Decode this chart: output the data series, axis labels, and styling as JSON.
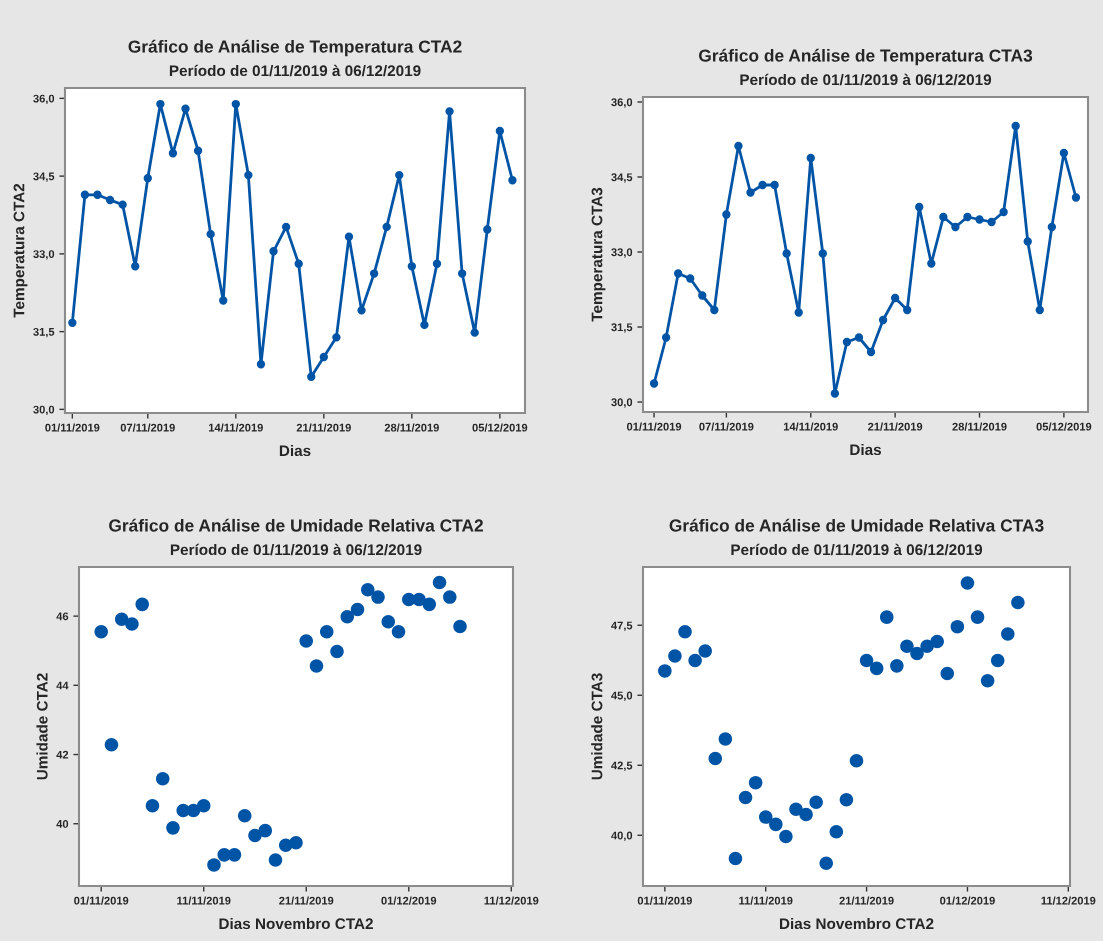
{
  "chart_data": [
    {
      "type": "line",
      "title": "Gráfico de Análise de Temperatura CTA2",
      "subtitle": "Período de 01/11/2019 à 06/12/2019",
      "xlabel": "Dias",
      "ylabel": "Temperatura CTA2",
      "marker": "circle",
      "grid": false,
      "legend": false,
      "x": [
        "2019-11-01",
        "2019-11-02",
        "2019-11-03",
        "2019-11-04",
        "2019-11-05",
        "2019-11-06",
        "2019-11-07",
        "2019-11-08",
        "2019-11-09",
        "2019-11-10",
        "2019-11-11",
        "2019-11-12",
        "2019-11-13",
        "2019-11-14",
        "2019-11-15",
        "2019-11-16",
        "2019-11-17",
        "2019-11-18",
        "2019-11-19",
        "2019-11-20",
        "2019-11-21",
        "2019-11-22",
        "2019-11-23",
        "2019-11-24",
        "2019-11-25",
        "2019-11-26",
        "2019-11-27",
        "2019-11-28",
        "2019-11-29",
        "2019-11-30",
        "2019-12-01",
        "2019-12-02",
        "2019-12-03",
        "2019-12-04",
        "2019-12-05",
        "2019-12-06"
      ],
      "series": [
        {
          "color": "#0054a6",
          "values": [
            31.67,
            34.14,
            34.14,
            34.04,
            33.95,
            32.76,
            34.46,
            35.89,
            34.94,
            35.8,
            34.99,
            33.38,
            32.1,
            35.89,
            34.52,
            30.87,
            33.05,
            33.52,
            32.81,
            30.63,
            31.01,
            31.39,
            33.33,
            31.91,
            32.62,
            33.52,
            34.52,
            32.76,
            31.63,
            32.81,
            35.75,
            32.62,
            31.48,
            33.47,
            35.37,
            34.42
          ]
        }
      ],
      "xlim": [
        "2019-10-31T10:00",
        "2019-12-07T00:00"
      ],
      "ylim": [
        29.93,
        36.2
      ],
      "xticks": [
        {
          "value": "2019-11-01",
          "label": "01/11/2019"
        },
        {
          "value": "2019-11-07",
          "label": "07/11/2019"
        },
        {
          "value": "2019-11-14",
          "label": "14/11/2019"
        },
        {
          "value": "2019-11-21",
          "label": "21/11/2019"
        },
        {
          "value": "2019-11-28",
          "label": "28/11/2019"
        },
        {
          "value": "2019-12-05",
          "label": "05/12/2019"
        }
      ],
      "yticks": [
        {
          "value": 30,
          "label": "30,0"
        },
        {
          "value": 31.5,
          "label": "31,5"
        },
        {
          "value": 33,
          "label": "33,0"
        },
        {
          "value": 34.5,
          "label": "34,5"
        },
        {
          "value": 36,
          "label": "36,0"
        }
      ]
    },
    {
      "type": "line",
      "title": "Gráfico de Análise de Temperatura CTA3",
      "subtitle": "Período de 01/11/2019 à 06/12/2019",
      "xlabel": "Dias",
      "ylabel": "Temperatura CTA3",
      "marker": "circle",
      "grid": false,
      "legend": false,
      "x": [
        "2019-11-01",
        "2019-11-02",
        "2019-11-03",
        "2019-11-04",
        "2019-11-05",
        "2019-11-06",
        "2019-11-07",
        "2019-11-08",
        "2019-11-09",
        "2019-11-10",
        "2019-11-11",
        "2019-11-12",
        "2019-11-13",
        "2019-11-14",
        "2019-11-15",
        "2019-11-16",
        "2019-11-17",
        "2019-11-18",
        "2019-11-19",
        "2019-11-20",
        "2019-11-21",
        "2019-11-22",
        "2019-11-23",
        "2019-11-24",
        "2019-11-25",
        "2019-11-26",
        "2019-11-27",
        "2019-11-28",
        "2019-11-29",
        "2019-11-30",
        "2019-12-01",
        "2019-12-02",
        "2019-12-03",
        "2019-12-04",
        "2019-12-05",
        "2019-12-06"
      ],
      "series": [
        {
          "color": "#0054a6",
          "values": [
            30.37,
            31.29,
            32.57,
            32.47,
            32.13,
            31.84,
            33.75,
            35.12,
            34.19,
            34.34,
            34.34,
            32.97,
            31.79,
            34.88,
            32.97,
            30.17,
            31.2,
            31.29,
            31.0,
            31.64,
            32.08,
            31.84,
            33.9,
            32.77,
            33.7,
            33.5,
            33.7,
            33.65,
            33.6,
            33.8,
            35.52,
            33.21,
            31.84,
            33.5,
            34.98,
            34.09
          ]
        }
      ],
      "xlim": [
        "2019-10-31T02:00",
        "2019-12-07T00:00"
      ],
      "ylim": [
        29.8,
        36.1
      ],
      "xticks": [
        {
          "value": "2019-11-01",
          "label": "01/11/2019"
        },
        {
          "value": "2019-11-07",
          "label": "07/11/2019"
        },
        {
          "value": "2019-11-14",
          "label": "14/11/2019"
        },
        {
          "value": "2019-11-21",
          "label": "21/11/2019"
        },
        {
          "value": "2019-11-28",
          "label": "28/11/2019"
        },
        {
          "value": "2019-12-05",
          "label": "05/12/2019"
        }
      ],
      "yticks": [
        {
          "value": 30,
          "label": "30,0"
        },
        {
          "value": 31.5,
          "label": "31,5"
        },
        {
          "value": 33,
          "label": "33,0"
        },
        {
          "value": 34.5,
          "label": "34,5"
        },
        {
          "value": 36,
          "label": "36,0"
        }
      ]
    },
    {
      "type": "scatter",
      "title": "Gráfico de Análise de Umidade Relativa CTA2",
      "subtitle": "Período de 01/11/2019 à 06/12/2019",
      "xlabel": "Dias Novembro CTA2",
      "ylabel": "Umidade CTA2",
      "marker": "circle",
      "grid": false,
      "legend": false,
      "x": [
        "2019-11-01",
        "2019-11-02",
        "2019-11-03",
        "2019-11-04",
        "2019-11-05",
        "2019-11-06",
        "2019-11-07",
        "2019-11-08",
        "2019-11-09",
        "2019-11-10",
        "2019-11-11",
        "2019-11-12",
        "2019-11-13",
        "2019-11-14",
        "2019-11-15",
        "2019-11-16",
        "2019-11-17",
        "2019-11-18",
        "2019-11-19",
        "2019-11-20",
        "2019-11-21",
        "2019-11-22",
        "2019-11-23",
        "2019-11-24",
        "2019-11-25",
        "2019-11-26",
        "2019-11-27",
        "2019-11-28",
        "2019-11-29",
        "2019-11-30",
        "2019-12-01",
        "2019-12-02",
        "2019-12-03",
        "2019-12-04",
        "2019-12-05",
        "2019-12-06"
      ],
      "series": [
        {
          "color": "#0054a6",
          "values": [
            45.55,
            42.28,
            45.91,
            45.77,
            46.34,
            40.52,
            41.3,
            39.88,
            40.38,
            40.38,
            40.52,
            38.81,
            39.1,
            39.1,
            40.23,
            39.66,
            39.8,
            38.95,
            39.38,
            39.45,
            45.28,
            44.56,
            45.55,
            44.98,
            45.98,
            46.19,
            46.76,
            46.55,
            45.84,
            45.55,
            46.48,
            46.48,
            46.34,
            46.97,
            46.55,
            45.7
          ]
        }
      ],
      "xlim": [
        "2019-10-29T20:00",
        "2019-12-11T04:00"
      ],
      "ylim": [
        38.2,
        47.42
      ],
      "xticks": [
        {
          "value": "2019-11-01",
          "label": "01/11/2019"
        },
        {
          "value": "2019-11-11",
          "label": "11/11/2019"
        },
        {
          "value": "2019-11-21",
          "label": "21/11/2019"
        },
        {
          "value": "2019-12-01",
          "label": "01/12/2019"
        },
        {
          "value": "2019-12-11",
          "label": "11/12/2019"
        }
      ],
      "yticks": [
        40,
        42,
        44,
        46
      ]
    },
    {
      "type": "scatter",
      "title": "Gráfico de Análise de Umidade Relativa CTA3",
      "subtitle": "Período de 01/11/2019 à 06/12/2019",
      "xlabel": "Dias Novembro CTA2",
      "ylabel": "Umidade CTA3",
      "marker": "circle",
      "grid": false,
      "legend": false,
      "x": [
        "2019-11-01",
        "2019-11-02",
        "2019-11-03",
        "2019-11-04",
        "2019-11-05",
        "2019-11-06",
        "2019-11-07",
        "2019-11-08",
        "2019-11-09",
        "2019-11-10",
        "2019-11-11",
        "2019-11-12",
        "2019-11-13",
        "2019-11-14",
        "2019-11-15",
        "2019-11-16",
        "2019-11-17",
        "2019-11-18",
        "2019-11-19",
        "2019-11-20",
        "2019-11-21",
        "2019-11-22",
        "2019-11-23",
        "2019-11-24",
        "2019-11-25",
        "2019-11-26",
        "2019-11-27",
        "2019-11-28",
        "2019-11-29",
        "2019-11-30",
        "2019-12-01",
        "2019-12-02",
        "2019-12-03",
        "2019-12-04",
        "2019-12-05",
        "2019-12-06"
      ],
      "series": [
        {
          "color": "#0054a6",
          "values": [
            45.87,
            46.4,
            47.27,
            46.24,
            46.58,
            42.74,
            43.44,
            39.17,
            41.35,
            41.88,
            40.65,
            40.39,
            39.96,
            40.93,
            40.74,
            41.18,
            39.0,
            40.13,
            41.27,
            42.66,
            46.24,
            45.96,
            47.79,
            46.05,
            46.75,
            46.49,
            46.75,
            46.92,
            45.78,
            47.45,
            49.01,
            47.79,
            45.52,
            46.24,
            47.19,
            48.31
          ]
        }
      ],
      "xlim": [
        "2019-10-29T20:00",
        "2019-12-11T04:00"
      ],
      "ylim": [
        38.19,
        49.58
      ],
      "xticks": [
        {
          "value": "2019-11-01",
          "label": "01/11/2019"
        },
        {
          "value": "2019-11-11",
          "label": "11/11/2019"
        },
        {
          "value": "2019-11-21",
          "label": "21/11/2019"
        },
        {
          "value": "2019-12-01",
          "label": "01/12/2019"
        },
        {
          "value": "2019-12-11",
          "label": "11/12/2019"
        }
      ],
      "yticks": [
        {
          "value": 40,
          "label": "40,0"
        },
        {
          "value": 42.5,
          "label": "42,5"
        },
        {
          "value": 45,
          "label": "45,0"
        },
        {
          "value": 47.5,
          "label": "47,5"
        }
      ]
    }
  ]
}
